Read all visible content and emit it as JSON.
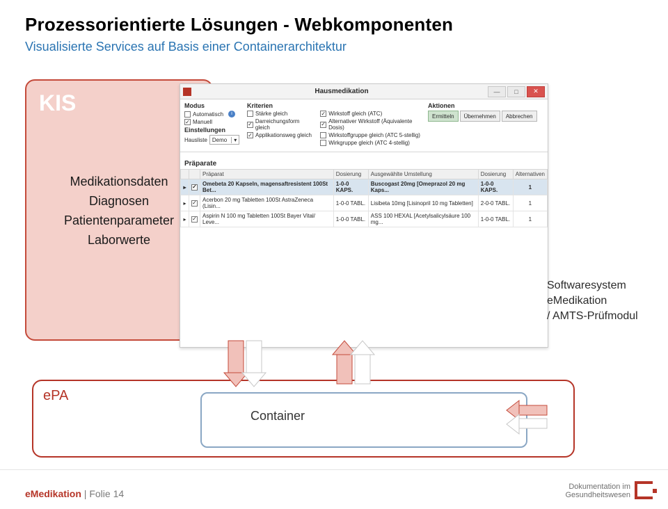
{
  "title": "Prozessorientierte Lösungen - Webkomponenten",
  "subtitle": "Visualisierte Services auf Basis einer Containerarchitektur",
  "kis": {
    "title": "KIS",
    "items": [
      "Medikationsdaten",
      "Diagnosen",
      "Patientenparameter",
      "Laborwerte"
    ]
  },
  "system_label": {
    "line1": "Softwaresystem",
    "line2": "eMedikation",
    "line3": "/ AMTS-Prüfmodul"
  },
  "epa": {
    "label": "ePA",
    "container_label": "Container"
  },
  "window": {
    "title": "Hausmedikation",
    "sections": {
      "modus": {
        "label": "Modus",
        "options": [
          {
            "label": "Automatisch",
            "checked": false,
            "type": "checkbox",
            "info": true
          },
          {
            "label": "Manuell",
            "checked": true,
            "type": "checkbox"
          }
        ]
      },
      "kriterien": {
        "label": "Kriterien",
        "options": [
          {
            "label": "Stärke gleich",
            "checked": false
          },
          {
            "label": "Darreichungsform gleich",
            "checked": true
          },
          {
            "label": "Applikationsweg gleich",
            "checked": true
          },
          {
            "label": "Wirkstoff gleich (ATC)",
            "checked": true
          },
          {
            "label": "Alternativer Wirkstoff (Äquivalente Dosis)",
            "checked": true
          },
          {
            "label": "Wirkstoffgruppe gleich (ATC 5-stellig)",
            "checked": false
          },
          {
            "label": "Wirkgruppe gleich (ATC 4-stellig)",
            "checked": false
          }
        ]
      },
      "aktionen": {
        "label": "Aktionen",
        "buttons": [
          "Ermitteln",
          "Übernehmen",
          "Abbrechen"
        ]
      },
      "einstellungen": {
        "label": "Einstellungen",
        "hausliste_label": "Hausliste",
        "hausliste_value": "Demo"
      }
    },
    "praeparate": {
      "label": "Präparate",
      "columns": [
        "",
        "",
        "Präparat",
        "Dosierung",
        "Ausgewählte Umstellung",
        "Dosierung",
        "Alternativen"
      ],
      "rows": [
        {
          "selected": true,
          "chk": true,
          "praeparat": "Omebeta 20 Kapseln, magensaftresistent 100St Bet...",
          "dos1": "1-0-0 KAPS.",
          "umst": "Buscogast 20mg [Omeprazol 20 mg Kaps...",
          "dos2": "1-0-0 KAPS.",
          "alt": "1"
        },
        {
          "selected": false,
          "chk": true,
          "praeparat": "Acerbon 20 mg Tabletten 100St AstraZeneca (Lisin...",
          "dos1": "1-0-0 TABL.",
          "umst": "Lisibeta 10mg [Lisinopril 10 mg Tabletten]",
          "dos2": "2-0-0 TABL.",
          "alt": "1"
        },
        {
          "selected": false,
          "chk": true,
          "praeparat": "Aspirin N 100 mg Tabletten 100St Bayer Vital/ Leve...",
          "dos1": "1-0-0 TABL.",
          "umst": "ASS 100 HEXAL [Acetylsalicylsäure 100 mg...",
          "dos2": "1-0-0 TABL.",
          "alt": "1"
        }
      ]
    }
  },
  "footer": {
    "brand": "eMedikation",
    "separator": " | ",
    "page": "Folie 14"
  },
  "logo": {
    "line1": "Dokumentation im",
    "line2": "Gesundheitswesen"
  },
  "colors": {
    "accent_red": "#b53427",
    "kis_border": "#c44a3a",
    "kis_fill": "#f4d0ca",
    "subtitle_blue": "#2a74b2",
    "epa_inner_border": "#8aa7c4",
    "arrow_fill": "#f1c1ba"
  }
}
